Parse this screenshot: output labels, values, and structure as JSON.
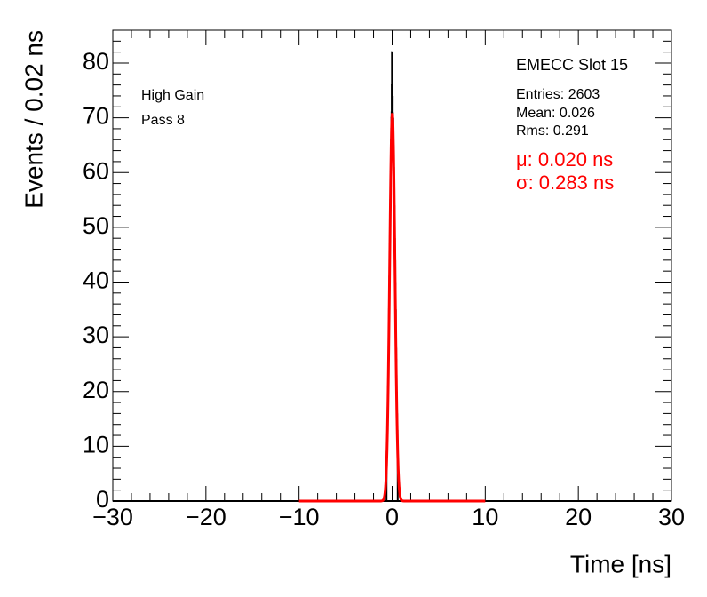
{
  "chart_data": {
    "type": "histogram",
    "x_label": "Time [ns]",
    "y_label": "Events / 0.02 ns",
    "xlim": [
      -30,
      30
    ],
    "ylim": [
      0,
      86
    ],
    "xticks": [
      {
        "value": -30,
        "label": "−30"
      },
      {
        "value": -20,
        "label": "−20"
      },
      {
        "value": -10,
        "label": "−10"
      },
      0,
      10,
      20,
      30
    ],
    "yticks": [
      0,
      10,
      20,
      30,
      40,
      50,
      60,
      70,
      80
    ],
    "color": "#000000",
    "bins": [
      -0.6,
      -0.58,
      -0.56,
      -0.54,
      -0.52,
      -0.5,
      -0.48,
      -0.46,
      -0.44,
      -0.42,
      -0.4,
      -0.38,
      -0.36,
      -0.34,
      -0.32,
      -0.3,
      -0.28,
      -0.26,
      -0.24,
      -0.22,
      -0.2,
      -0.18,
      -0.16,
      -0.14,
      -0.12,
      -0.1,
      -0.08,
      -0.06,
      -0.04,
      -0.02,
      0,
      0.02,
      0.04,
      0.06,
      0.08,
      0.1,
      0.12,
      0.14,
      0.16,
      0.18,
      0.2,
      0.22,
      0.24,
      0.26,
      0.28,
      0.3,
      0.32,
      0.34,
      0.36,
      0.38,
      0.4,
      0.42,
      0.44,
      0.46,
      0.48,
      0.5,
      0.52,
      0.54,
      0.56,
      0.58,
      0.6
    ],
    "values": [
      7,
      9,
      10,
      11,
      13,
      14,
      17,
      18,
      21,
      22,
      26,
      29,
      30,
      35,
      36,
      41,
      43,
      47,
      49,
      53,
      55,
      59,
      60,
      64,
      66,
      68,
      70,
      71,
      76,
      82,
      73,
      72,
      74,
      71,
      69,
      70,
      67,
      65,
      64,
      61,
      59,
      57,
      54,
      52,
      48,
      46,
      44,
      40,
      37,
      35,
      31,
      28,
      26,
      23,
      20,
      19,
      16,
      14,
      13,
      11
    ],
    "fit": {
      "color": "#ff0000",
      "amplitude": 71,
      "mean": 0.02,
      "sigma": 0.283,
      "range": [
        -10,
        10
      ]
    },
    "title": "EMECC Slot 15",
    "labels": [
      "High Gain",
      "Pass 8"
    ],
    "stats": [
      "Entries: 2603",
      "Mean: 0.026",
      "Rms: 0.291"
    ],
    "fit_labels": [
      "μ: 0.020 ns",
      "σ: 0.283 ns"
    ]
  }
}
